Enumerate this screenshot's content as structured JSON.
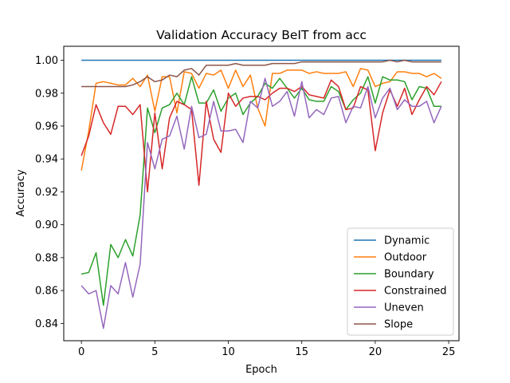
{
  "chart_data": {
    "type": "line",
    "title": "Validation Accuracy BeIT from acc",
    "xlabel": "Epoch",
    "ylabel": "Accuracy",
    "xlim": [
      -1.2,
      25.7
    ],
    "ylim": [
      0.8295,
      1.0085
    ],
    "xticks": [
      0,
      5,
      10,
      15,
      20,
      25
    ],
    "yticks": [
      0.84,
      0.86,
      0.88,
      0.9,
      0.92,
      0.94,
      0.96,
      0.98,
      1.0
    ],
    "ytick_labels": [
      "0.84",
      "0.86",
      "0.88",
      "0.90",
      "0.92",
      "0.94",
      "0.96",
      "0.98",
      "1.00"
    ],
    "grid": false,
    "legend_position": "lower-right",
    "x": [
      0,
      0.5,
      1,
      1.5,
      2,
      2.5,
      3,
      3.5,
      4,
      4.5,
      5,
      5.5,
      6,
      6.5,
      7,
      7.5,
      8,
      8.5,
      9,
      9.5,
      10,
      10.5,
      11,
      11.5,
      12,
      12.5,
      13,
      13.5,
      14,
      14.5,
      15,
      15.5,
      16,
      16.5,
      17,
      17.5,
      18,
      18.5,
      19,
      19.5,
      20,
      20.5,
      21,
      21.5,
      22,
      22.5,
      23,
      23.5,
      24,
      24.5
    ],
    "series": [
      {
        "name": "Dynamic",
        "color": "#1f77b4",
        "values": [
          1.0,
          1.0,
          1.0,
          1.0,
          1.0,
          1.0,
          1.0,
          1.0,
          1.0,
          1.0,
          1.0,
          1.0,
          1.0,
          1.0,
          1.0,
          1.0,
          1.0,
          1.0,
          1.0,
          1.0,
          1.0,
          1.0,
          1.0,
          1.0,
          1.0,
          1.0,
          1.0,
          1.0,
          1.0,
          1.0,
          1.0,
          1.0,
          1.0,
          1.0,
          1.0,
          1.0,
          1.0,
          1.0,
          1.0,
          1.0,
          1.0,
          1.0,
          1.0,
          1.0,
          1.0,
          1.0,
          1.0,
          1.0,
          1.0,
          1.0
        ]
      },
      {
        "name": "Outdoor",
        "color": "#ff7f0e",
        "values": [
          0.933,
          0.957,
          0.986,
          0.987,
          0.986,
          0.985,
          0.985,
          0.989,
          0.984,
          0.991,
          0.969,
          0.99,
          0.99,
          0.968,
          0.993,
          0.992,
          0.983,
          0.992,
          0.991,
          0.994,
          0.983,
          0.994,
          0.984,
          0.991,
          0.971,
          0.96,
          0.992,
          0.992,
          0.994,
          0.994,
          0.994,
          0.992,
          0.993,
          0.992,
          0.992,
          0.992,
          0.993,
          0.984,
          0.995,
          0.994,
          0.984,
          0.986,
          0.987,
          0.993,
          0.993,
          0.992,
          0.992,
          0.99,
          0.992,
          0.989
        ]
      },
      {
        "name": "Boundary",
        "color": "#2ca02c",
        "values": [
          0.87,
          0.871,
          0.883,
          0.851,
          0.888,
          0.88,
          0.891,
          0.881,
          0.906,
          0.971,
          0.956,
          0.971,
          0.973,
          0.98,
          0.973,
          0.99,
          0.974,
          0.974,
          0.982,
          0.969,
          0.977,
          0.98,
          0.967,
          0.974,
          0.978,
          0.986,
          0.983,
          0.989,
          0.983,
          0.977,
          0.983,
          0.976,
          0.975,
          0.975,
          0.984,
          0.981,
          0.97,
          0.976,
          0.98,
          0.99,
          0.974,
          0.99,
          0.988,
          0.988,
          0.987,
          0.976,
          0.984,
          0.983,
          0.972,
          0.972
        ]
      },
      {
        "name": "Constrained",
        "color": "#d62728",
        "values": [
          0.942,
          0.954,
          0.973,
          0.962,
          0.955,
          0.972,
          0.972,
          0.967,
          0.973,
          0.92,
          0.968,
          0.934,
          0.965,
          0.975,
          0.973,
          0.97,
          0.924,
          0.975,
          0.952,
          0.944,
          0.98,
          0.972,
          0.977,
          0.978,
          0.978,
          0.976,
          0.98,
          0.983,
          0.983,
          0.981,
          0.984,
          0.979,
          0.978,
          0.977,
          0.988,
          0.984,
          0.97,
          0.971,
          0.984,
          0.982,
          0.945,
          0.968,
          0.982,
          0.972,
          0.983,
          0.967,
          0.976,
          0.984,
          0.979,
          0.987
        ]
      },
      {
        "name": "Uneven",
        "color": "#9467bd",
        "values": [
          0.863,
          0.858,
          0.86,
          0.837,
          0.863,
          0.858,
          0.877,
          0.856,
          0.876,
          0.95,
          0.934,
          0.952,
          0.954,
          0.966,
          0.946,
          0.972,
          0.953,
          0.955,
          0.975,
          0.957,
          0.957,
          0.958,
          0.95,
          0.975,
          0.971,
          0.989,
          0.972,
          0.975,
          0.981,
          0.966,
          0.987,
          0.965,
          0.97,
          0.967,
          0.977,
          0.978,
          0.962,
          0.972,
          0.971,
          0.984,
          0.965,
          0.977,
          0.983,
          0.97,
          0.976,
          0.972,
          0.972,
          0.975,
          0.962,
          0.972
        ]
      },
      {
        "name": "Slope",
        "color": "#8c564b",
        "values": [
          0.984,
          0.984,
          0.984,
          0.984,
          0.984,
          0.984,
          0.984,
          0.985,
          0.987,
          0.99,
          0.987,
          0.988,
          0.991,
          0.99,
          0.994,
          0.995,
          0.991,
          0.997,
          0.997,
          0.997,
          0.997,
          0.998,
          0.997,
          0.997,
          0.997,
          0.997,
          0.998,
          0.998,
          0.998,
          0.998,
          0.999,
          0.999,
          0.999,
          0.999,
          0.999,
          0.999,
          0.999,
          0.999,
          0.999,
          0.999,
          0.999,
          0.999,
          1.0,
          0.999,
          1.0,
          0.999,
          0.999,
          0.999,
          0.999,
          0.999
        ]
      }
    ]
  }
}
